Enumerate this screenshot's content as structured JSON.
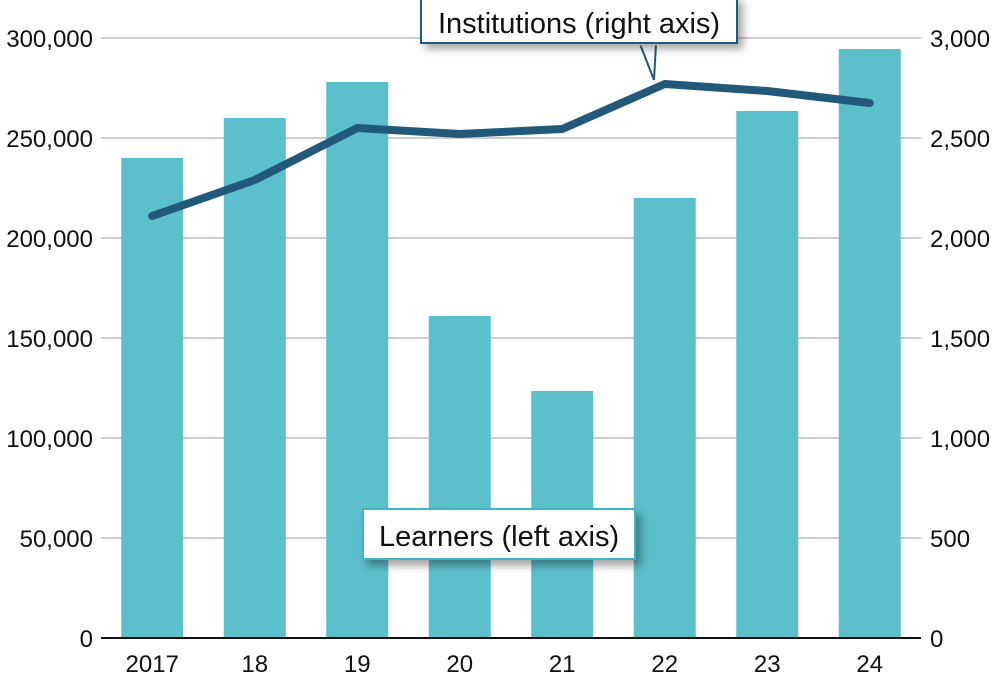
{
  "chart_data": {
    "type": "bar+line",
    "title": "",
    "categories": [
      "2017",
      "18",
      "19",
      "20",
      "21",
      "22",
      "23",
      "24"
    ],
    "series": [
      {
        "name": "Learners (left axis)",
        "type": "bar",
        "axis": "left",
        "color": "#5bc0cb",
        "values": [
          240000,
          260000,
          278000,
          161000,
          123500,
          220000,
          263500,
          294500
        ]
      },
      {
        "name": "Institutions (right axis)",
        "type": "line",
        "axis": "right",
        "color": "#22587a",
        "values": [
          2110,
          2290,
          2550,
          2520,
          2545,
          2770,
          2735,
          2675
        ]
      }
    ],
    "left_axis": {
      "range": [
        0,
        300000
      ],
      "ticks": [
        0,
        50000,
        100000,
        150000,
        200000,
        250000,
        300000
      ],
      "tick_labels": [
        "0",
        "50,000",
        "100,000",
        "150,000",
        "200,000",
        "250,000",
        "300,000"
      ]
    },
    "right_axis": {
      "range": [
        0,
        3000
      ],
      "ticks": [
        0,
        500,
        1000,
        1500,
        2000,
        2500,
        3000
      ],
      "tick_labels": [
        "0",
        "500",
        "1,000",
        "1,500",
        "2,000",
        "2,500",
        "3,000"
      ]
    },
    "xlabel": "",
    "ylabel": "",
    "grid": true,
    "legend": "callout labels"
  },
  "annotations": {
    "institutions_label": "Institutions (right axis)",
    "learners_label": "Learners (left axis)"
  },
  "colors": {
    "bar": "#5bc0cb",
    "line": "#22587a",
    "grid": "#cccccc",
    "axis": "#111111"
  }
}
